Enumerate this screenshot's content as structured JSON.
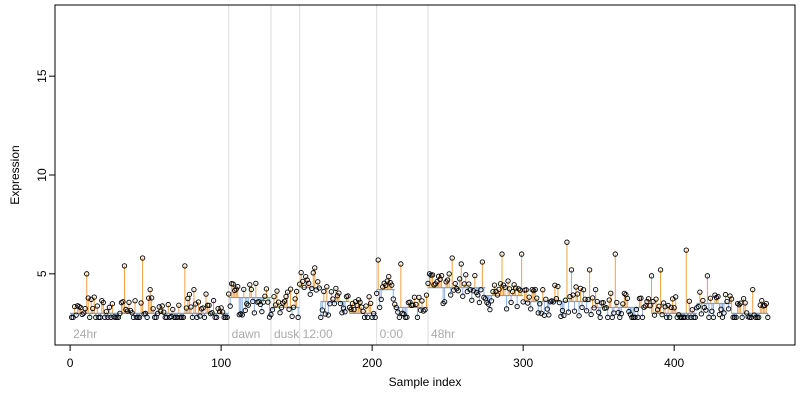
{
  "chart_data": {
    "type": "scatter",
    "xlabel": "Sample index",
    "ylabel": "Expression",
    "xlim": [
      -10,
      480
    ],
    "ylim": [
      1.4,
      18.6
    ],
    "x_ticks": [
      0,
      100,
      200,
      300,
      400
    ],
    "y_ticks": [
      5,
      10,
      15
    ],
    "segments": [
      {
        "label": "24hr",
        "start": 0,
        "end": 105
      },
      {
        "label": "dawn",
        "start": 105,
        "end": 133
      },
      {
        "label": "dusk",
        "start": 133,
        "end": 152
      },
      {
        "label": "12:00",
        "start": 152,
        "end": 203
      },
      {
        "label": "0:00",
        "start": 203,
        "end": 237
      },
      {
        "label": "48hr",
        "start": 237,
        "end": 462
      }
    ],
    "boundaries": [
      105,
      133,
      152,
      203,
      237
    ],
    "baseline_levels": [
      {
        "start": 0,
        "end": 105,
        "value": 3.0
      },
      {
        "start": 105,
        "end": 133,
        "value": 3.8
      },
      {
        "start": 133,
        "end": 152,
        "value": 3.3
      },
      {
        "start": 152,
        "end": 166,
        "value": 4.3
      },
      {
        "start": 166,
        "end": 185,
        "value": 3.6
      },
      {
        "start": 185,
        "end": 203,
        "value": 3.0
      },
      {
        "start": 203,
        "end": 215,
        "value": 4.2
      },
      {
        "start": 215,
        "end": 237,
        "value": 3.3
      },
      {
        "start": 237,
        "end": 275,
        "value": 4.3
      },
      {
        "start": 275,
        "end": 300,
        "value": 3.9
      },
      {
        "start": 300,
        "end": 345,
        "value": 3.6
      },
      {
        "start": 345,
        "end": 385,
        "value": 3.3
      },
      {
        "start": 385,
        "end": 415,
        "value": 3.0
      },
      {
        "start": 415,
        "end": 438,
        "value": 3.5
      },
      {
        "start": 438,
        "end": 462,
        "value": 3.0
      }
    ],
    "outliers": [
      {
        "x": 11,
        "y": 5.0
      },
      {
        "x": 36,
        "y": 5.4
      },
      {
        "x": 48,
        "y": 5.8
      },
      {
        "x": 53,
        "y": 4.2
      },
      {
        "x": 76,
        "y": 5.4
      },
      {
        "x": 82,
        "y": 4.2
      },
      {
        "x": 162,
        "y": 5.3
      },
      {
        "x": 204,
        "y": 5.7
      },
      {
        "x": 219,
        "y": 5.5
      },
      {
        "x": 238,
        "y": 5.0
      },
      {
        "x": 253,
        "y": 5.8
      },
      {
        "x": 259,
        "y": 5.5
      },
      {
        "x": 273,
        "y": 5.6
      },
      {
        "x": 286,
        "y": 6.0
      },
      {
        "x": 299,
        "y": 6.0
      },
      {
        "x": 329,
        "y": 6.6
      },
      {
        "x": 332,
        "y": 5.2
      },
      {
        "x": 344,
        "y": 5.2
      },
      {
        "x": 361,
        "y": 6.0
      },
      {
        "x": 385,
        "y": 4.9
      },
      {
        "x": 391,
        "y": 5.2
      },
      {
        "x": 408,
        "y": 6.2
      },
      {
        "x": 422,
        "y": 4.9
      },
      {
        "x": 452,
        "y": 4.2
      }
    ]
  }
}
